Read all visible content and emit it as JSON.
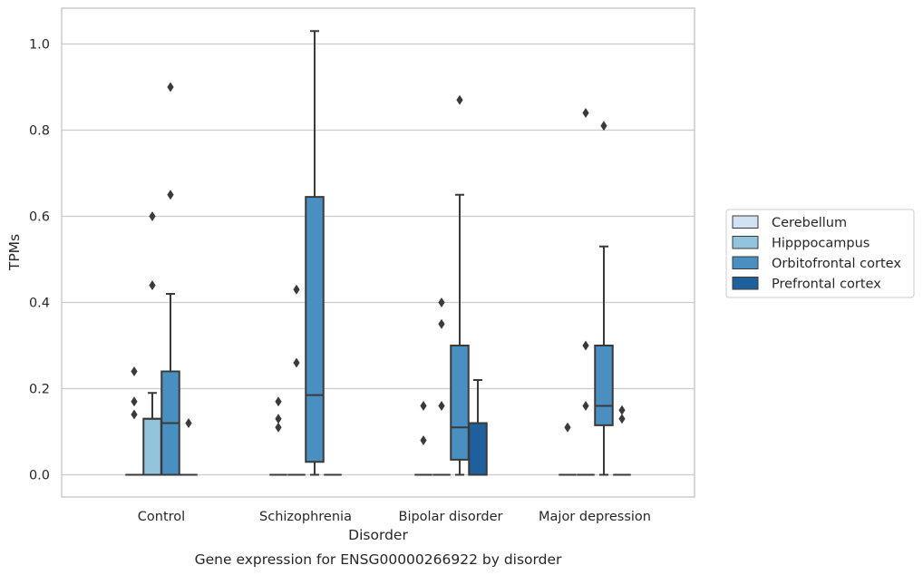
{
  "chart_data": {
    "type": "box",
    "caption": "Gene expression for ENSG00000266922 by disorder",
    "xlabel": "Disorder",
    "ylabel": "TPMs",
    "ylim": [
      -0.05,
      1.08
    ],
    "yticks": [
      "0.0",
      "0.2",
      "0.4",
      "0.6",
      "0.8",
      "1.0"
    ],
    "grid": true,
    "legend_position": "right",
    "categories": [
      "Control",
      "Schizophrenia",
      "Bipolar disorder",
      "Major depression"
    ],
    "series": [
      {
        "name": "Cerebellum",
        "color": "#cfe1f2",
        "boxes": [
          {
            "category": "Control",
            "low": 0,
            "q1": 0,
            "median": 0,
            "q3": 0,
            "high": 0,
            "outliers": [
              0.24,
              0.17,
              0.14
            ]
          },
          {
            "category": "Schizophrenia",
            "low": 0,
            "q1": 0,
            "median": 0,
            "q3": 0,
            "high": 0,
            "outliers": [
              0.17,
              0.13,
              0.11
            ]
          },
          {
            "category": "Bipolar disorder",
            "low": 0,
            "q1": 0,
            "median": 0,
            "q3": 0,
            "high": 0,
            "outliers": [
              0.16,
              0.08
            ]
          },
          {
            "category": "Major depression",
            "low": 0,
            "q1": 0,
            "median": 0,
            "q3": 0,
            "high": 0,
            "outliers": [
              0.11
            ]
          }
        ]
      },
      {
        "name": "Hipppocampus",
        "color": "#93c4de",
        "boxes": [
          {
            "category": "Control",
            "low": 0,
            "q1": 0,
            "median": 0.13,
            "q3": 0.13,
            "high": 0.19,
            "outliers": [
              0.6,
              0.44
            ]
          },
          {
            "category": "Schizophrenia",
            "low": 0,
            "q1": 0,
            "median": 0,
            "q3": 0,
            "high": 0,
            "outliers": [
              0.43,
              0.26
            ]
          },
          {
            "category": "Bipolar disorder",
            "low": 0,
            "q1": 0,
            "median": 0,
            "q3": 0,
            "high": 0,
            "outliers": [
              0.4,
              0.35,
              0.16
            ]
          },
          {
            "category": "Major depression",
            "low": 0,
            "q1": 0,
            "median": 0,
            "q3": 0,
            "high": 0,
            "outliers": [
              0.84,
              0.3,
              0.16
            ]
          }
        ]
      },
      {
        "name": "Orbitofrontal cortex",
        "color": "#4a8fc1",
        "boxes": [
          {
            "category": "Control",
            "low": 0,
            "q1": 0,
            "median": 0.12,
            "q3": 0.24,
            "high": 0.42,
            "outliers": [
              0.9,
              0.65
            ]
          },
          {
            "category": "Schizophrenia",
            "low": 0,
            "q1": 0.03,
            "median": 0.185,
            "q3": 0.645,
            "high": 1.03,
            "outliers": []
          },
          {
            "category": "Bipolar disorder",
            "low": 0,
            "q1": 0.035,
            "median": 0.11,
            "q3": 0.3,
            "high": 0.65,
            "outliers": [
              0.87
            ]
          },
          {
            "category": "Major depression",
            "low": 0,
            "q1": 0.115,
            "median": 0.16,
            "q3": 0.3,
            "high": 0.53,
            "outliers": [
              0.81
            ]
          }
        ]
      },
      {
        "name": "Prefrontal cortex",
        "color": "#1f5f9b",
        "boxes": [
          {
            "category": "Control",
            "low": 0,
            "q1": 0,
            "median": 0,
            "q3": 0,
            "high": 0,
            "outliers": [
              0.12
            ]
          },
          {
            "category": "Schizophrenia",
            "low": 0,
            "q1": 0,
            "median": 0,
            "q3": 0,
            "high": 0,
            "outliers": []
          },
          {
            "category": "Bipolar disorder",
            "low": 0,
            "q1": 0,
            "median": 0,
            "q3": 0.12,
            "high": 0.22,
            "outliers": []
          },
          {
            "category": "Major depression",
            "low": 0,
            "q1": 0,
            "median": 0,
            "q3": 0,
            "high": 0,
            "outliers": [
              0.15,
              0.13
            ]
          }
        ]
      }
    ]
  }
}
